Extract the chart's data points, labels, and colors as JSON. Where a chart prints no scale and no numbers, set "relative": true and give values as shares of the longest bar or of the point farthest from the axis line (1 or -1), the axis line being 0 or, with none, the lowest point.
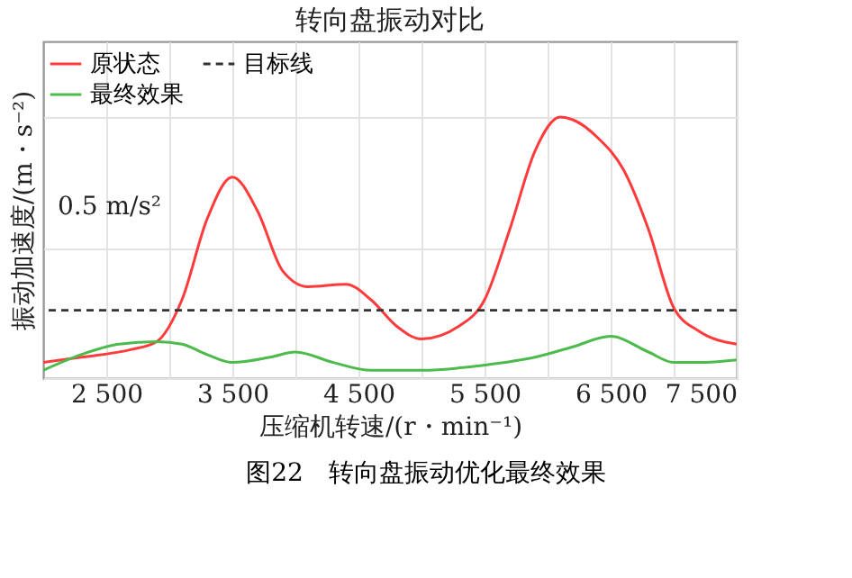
{
  "chart_data": {
    "type": "line",
    "title": "转向盘振动对比",
    "xlabel": "压缩机转速/(r・min⁻¹)",
    "ylabel": "振动加速度/(m・s⁻²)",
    "relative": true,
    "xlim": [
      2000,
      7500
    ],
    "xticks": [
      {
        "value": 2500,
        "label": "2 500"
      },
      {
        "value": 3000,
        "label": null
      },
      {
        "value": 3500,
        "label": "3 500"
      },
      {
        "value": 4000,
        "label": null
      },
      {
        "value": 4500,
        "label": "4 500"
      },
      {
        "value": 5000,
        "label": null
      },
      {
        "value": 5500,
        "label": "5 500"
      },
      {
        "value": 6000,
        "label": null
      },
      {
        "value": 6500,
        "label": "6 500"
      },
      {
        "value": 7000,
        "label": null
      },
      {
        "value": 7500,
        "label": "7 500"
      }
    ],
    "series": [
      {
        "name": "原状态",
        "color": "#ff3b3b",
        "x": [
          2000,
          2300,
          2700,
          2900,
          3100,
          3300,
          3500,
          3700,
          3900,
          4100,
          4400,
          4600,
          4800,
          5000,
          5300,
          5500,
          5700,
          5900,
          6100,
          6200,
          6400,
          6600,
          6800,
          7000,
          7200,
          7500
        ],
        "values": [
          0.06,
          0.08,
          0.11,
          0.14,
          0.3,
          0.61,
          0.77,
          0.64,
          0.41,
          0.35,
          0.36,
          0.3,
          0.2,
          0.15,
          0.2,
          0.3,
          0.57,
          0.87,
          1,
          0.99,
          0.92,
          0.8,
          0.57,
          0.27,
          0.18,
          0.13
        ]
      },
      {
        "name": "最终效果",
        "color": "#4cbb4c",
        "x": [
          2000,
          2300,
          2600,
          2900,
          3100,
          3300,
          3500,
          3800,
          4000,
          4300,
          4600,
          5000,
          5500,
          5900,
          6200,
          6500,
          6800,
          7000,
          7200,
          7500
        ],
        "values": [
          0.03,
          0.09,
          0.13,
          0.14,
          0.13,
          0.09,
          0.06,
          0.08,
          0.1,
          0.06,
          0.03,
          0.03,
          0.05,
          0.08,
          0.12,
          0.16,
          0.1,
          0.06,
          0.06,
          0.07
        ]
      }
    ],
    "ref_lines": [
      {
        "axis": "y",
        "value": 0.26,
        "label": "目标线",
        "color": "#333333",
        "line_style": "dashed"
      }
    ],
    "grid": true,
    "legend": "top left",
    "line_style": "solid",
    "annotations": [
      "0.5 m/s²",
      "图22　转向盘振动优化最终效果"
    ]
  }
}
